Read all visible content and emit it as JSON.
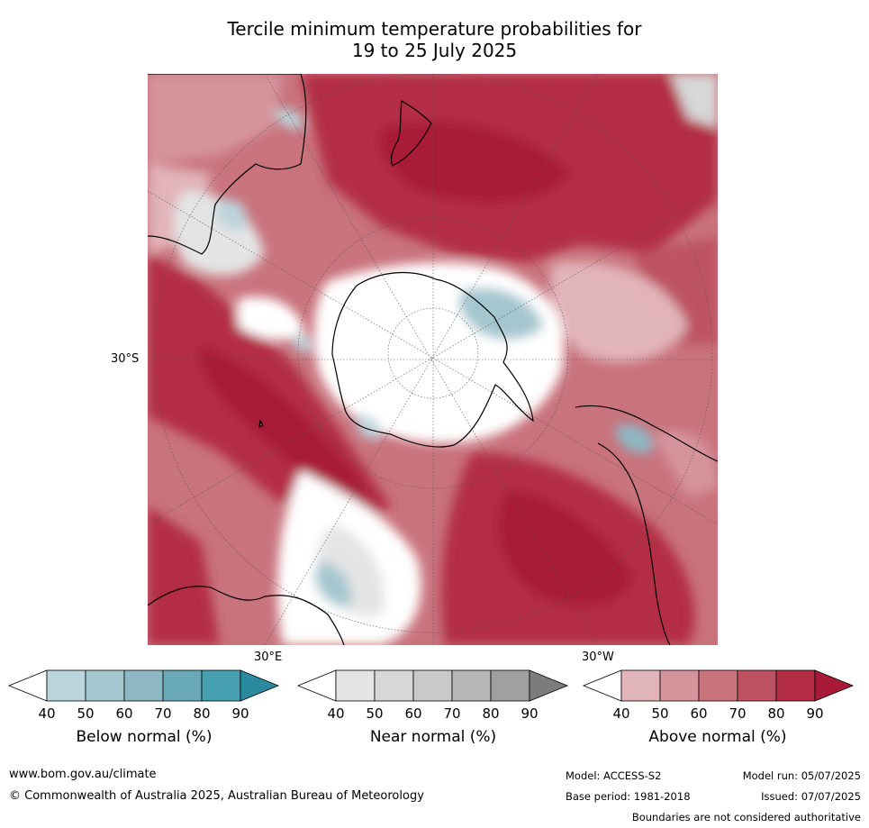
{
  "title": {
    "line1": "Tercile minimum temperature probabilities for",
    "line2": "19 to 25 July 2025"
  },
  "map": {
    "lat_label": "30°S",
    "lon_label_east": "30°E",
    "lon_label_west": "30°W",
    "colors": {
      "above": [
        "#e1b4b9",
        "#d5949c",
        "#c9737d",
        "#bd5362",
        "#b32d45",
        "#a81a37"
      ],
      "below": [
        "#bcd4db",
        "#a4c6cf",
        "#8db8c3",
        "#6aaab8",
        "#46a0b0",
        "#2b8a9f"
      ],
      "near": [
        "#e4e4e4",
        "#d7d7d7",
        "#c9c9c9",
        "#b6b6b6",
        "#a0a0a0",
        "#7c7c7c"
      ],
      "land_outline": "#000000"
    }
  },
  "colorbars": [
    {
      "name": "below",
      "label": "Below normal (%)",
      "ticks": [
        "40",
        "50",
        "60",
        "70",
        "80",
        "90"
      ],
      "colors": [
        "#bcd4db",
        "#a4c6cf",
        "#8db8c3",
        "#6aaab8",
        "#46a0b0",
        "#2b8a9f"
      ]
    },
    {
      "name": "near",
      "label": "Near normal (%)",
      "ticks": [
        "40",
        "50",
        "60",
        "70",
        "80",
        "90"
      ],
      "colors": [
        "#e4e4e4",
        "#d7d7d7",
        "#c9c9c9",
        "#b6b6b6",
        "#a0a0a0",
        "#7c7c7c"
      ]
    },
    {
      "name": "above",
      "label": "Above normal (%)",
      "ticks": [
        "40",
        "50",
        "60",
        "70",
        "80",
        "90"
      ],
      "colors": [
        "#e1b4b9",
        "#d5949c",
        "#c9737d",
        "#bd5362",
        "#b32d45",
        "#a81a37"
      ]
    }
  ],
  "footer": {
    "website": "www.bom.gov.au/climate",
    "copyright": "© Commonwealth of Australia 2025, Australian Bureau of Meteorology",
    "model": "Model: ACCESS-S2",
    "model_run": "Model run: 05/07/2025",
    "base_period": "Base period: 1981-2018",
    "issued": "Issued: 07/07/2025",
    "disclaimer": "Boundaries are not considered authoritative"
  }
}
